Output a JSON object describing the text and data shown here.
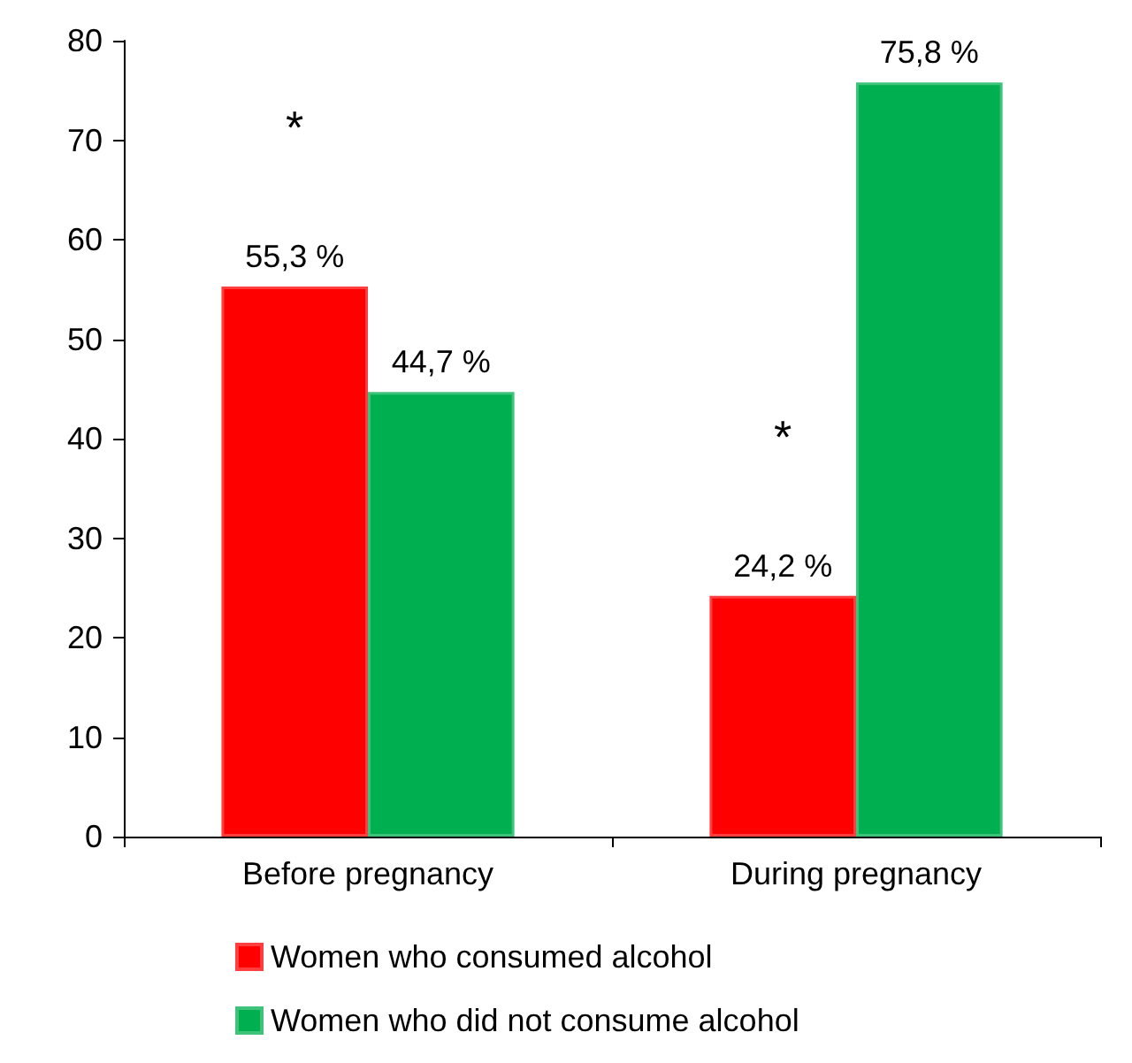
{
  "chart_data": {
    "type": "bar",
    "categories": [
      "Before pregnancy",
      "During pregnancy"
    ],
    "series": [
      {
        "name": "Women who consumed alcohol",
        "color": "#ff0000",
        "values": [
          55.3,
          24.2
        ],
        "value_labels": [
          "55,3 %",
          "24,2 %"
        ]
      },
      {
        "name": "Women who did not consume alcohol",
        "color": "#00b050",
        "values": [
          44.7,
          75.8
        ],
        "value_labels": [
          "44,7 %",
          "75,8 %"
        ]
      }
    ],
    "ylim": [
      0,
      80
    ],
    "yticks": [
      0,
      10,
      20,
      30,
      40,
      50,
      60,
      70,
      80
    ],
    "grid": false,
    "legend": "bottom",
    "annotations": [
      "*",
      "*"
    ]
  }
}
